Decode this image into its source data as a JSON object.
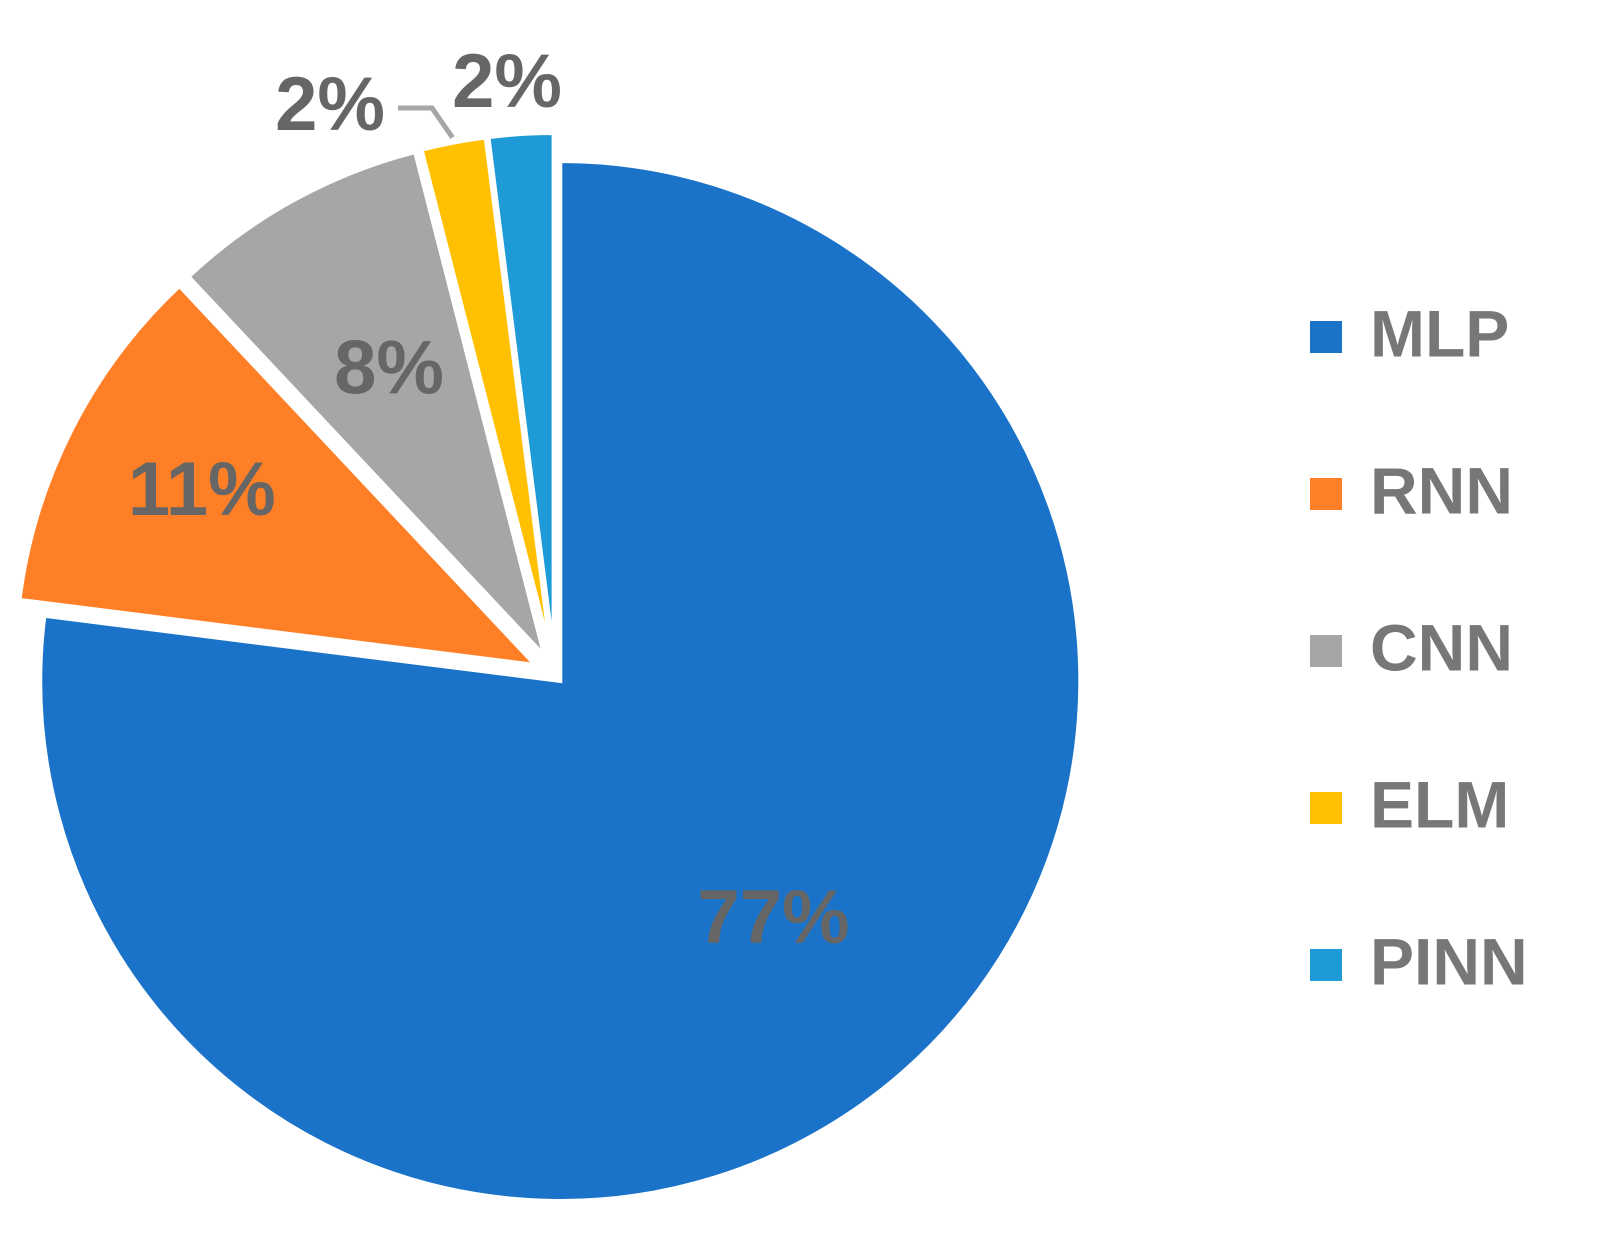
{
  "chart_data": {
    "type": "pie",
    "categories": [
      "MLP",
      "RNN",
      "CNN",
      "ELM",
      "PINN"
    ],
    "values": [
      77,
      11,
      8,
      2,
      2
    ],
    "labels": [
      "77%",
      "11%",
      "8%",
      "2%",
      "2%"
    ],
    "colors": [
      "#1a73c8",
      "#ff7f27",
      "#a6a6a6",
      "#ffc000",
      "#1e9ad6"
    ],
    "exploded": true,
    "start_angle": "12 o'clock",
    "direction": "clockwise",
    "legend_position": "right",
    "label_color": "#666666",
    "leader_line_color": "#a6a6a6"
  }
}
